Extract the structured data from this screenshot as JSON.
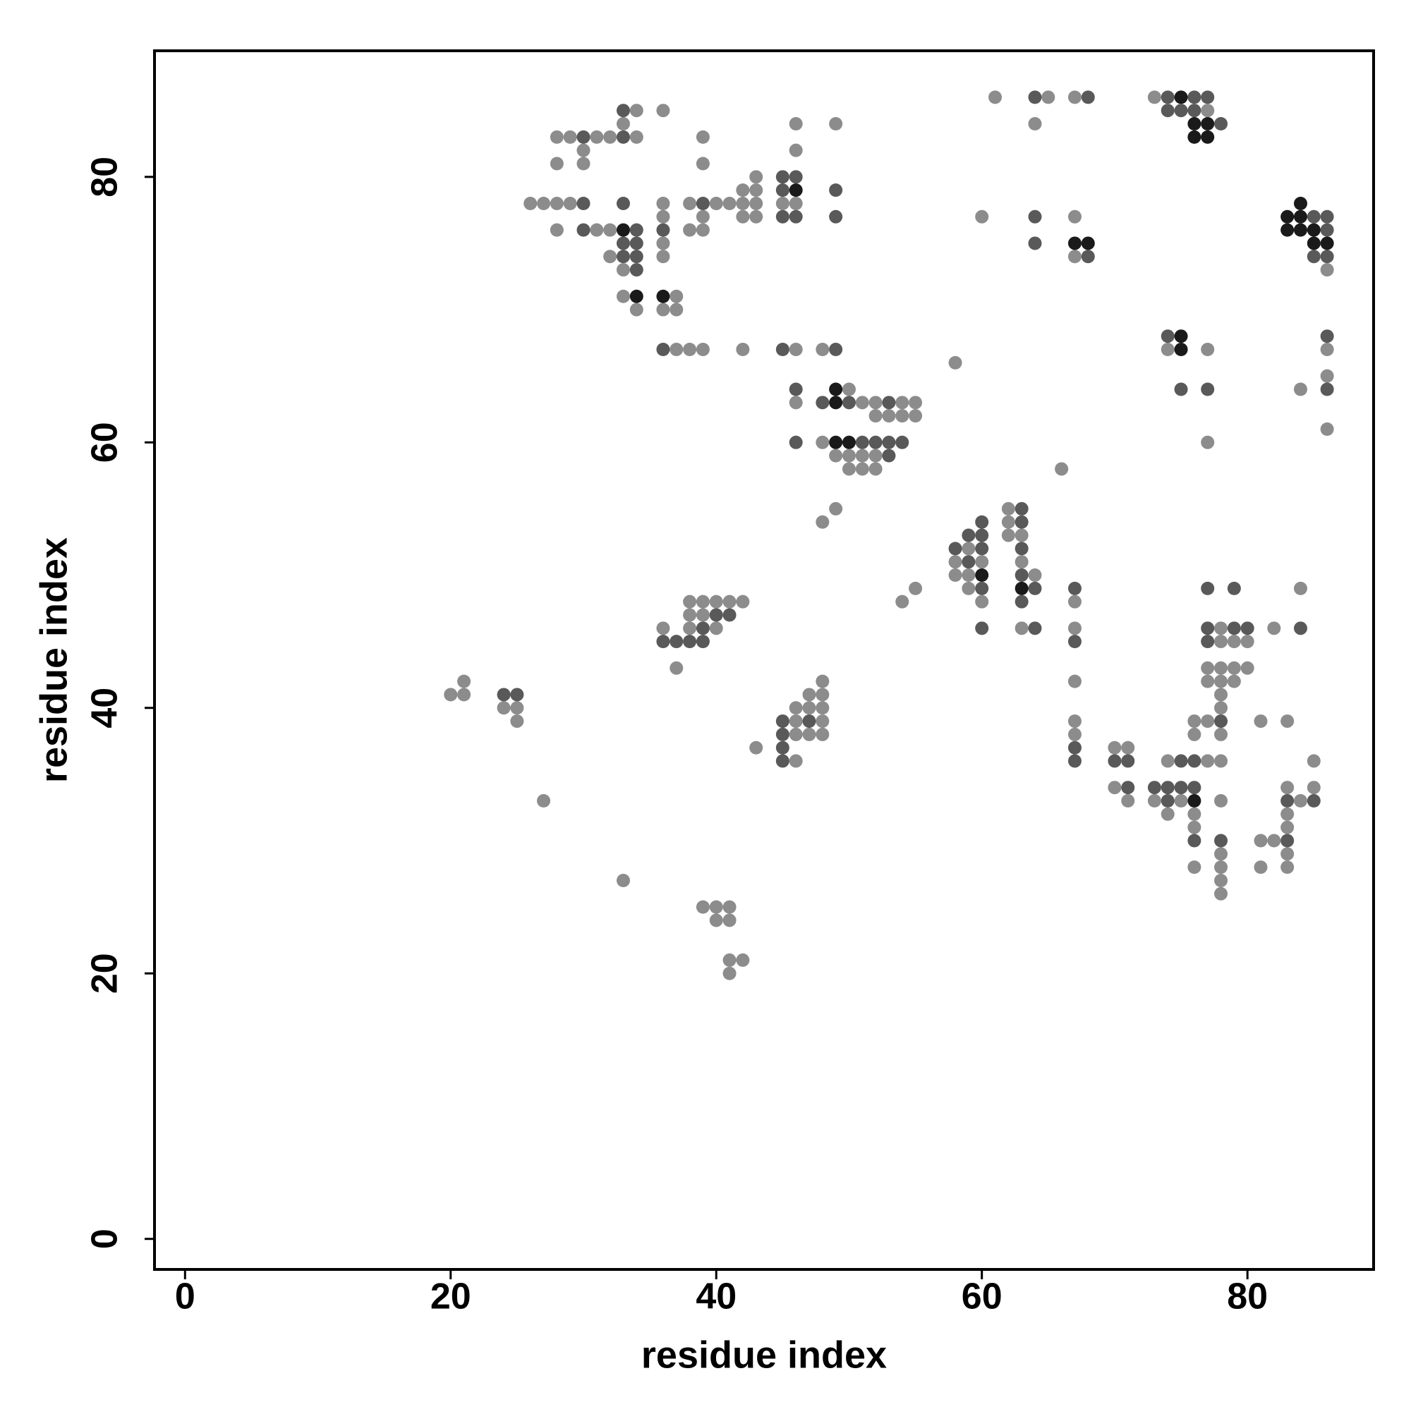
{
  "chart_data": {
    "type": "scatter",
    "xlabel": "residue index",
    "ylabel": "residue index",
    "xlim": [
      -2.3,
      89.5
    ],
    "ylim": [
      -2.3,
      89.5
    ],
    "xticks": [
      0,
      20,
      40,
      60,
      80
    ],
    "yticks": [
      0,
      20,
      40,
      60,
      80
    ],
    "series": [
      {
        "color": "#8c8c8c",
        "x": [
          61,
          65,
          67,
          73,
          34,
          36,
          77,
          33,
          46,
          49,
          64,
          28,
          29,
          31,
          32,
          34,
          39,
          30,
          46,
          28,
          30,
          39,
          43,
          42,
          43,
          26,
          27,
          28,
          29,
          36,
          38,
          40,
          41,
          42,
          43,
          45,
          46,
          36,
          39,
          42,
          43,
          60,
          67,
          28,
          31,
          32,
          38,
          39,
          36,
          32,
          36,
          67,
          33,
          86,
          33,
          37,
          34,
          36,
          37,
          37,
          38,
          39,
          42,
          46,
          48,
          74,
          77,
          86,
          58,
          86,
          50,
          84,
          46,
          51,
          52,
          54,
          55,
          52,
          53,
          54,
          55,
          86,
          48,
          77,
          49,
          50,
          51,
          52,
          50,
          51,
          52,
          66,
          49,
          62,
          48,
          62,
          62,
          63,
          59,
          58,
          60,
          63,
          58,
          59,
          64,
          55,
          59,
          84,
          38,
          39,
          40,
          41,
          42,
          54,
          60,
          67,
          38,
          39,
          36,
          38,
          40,
          63,
          67,
          78,
          82,
          78,
          79,
          80,
          37,
          77,
          78,
          79,
          80,
          21,
          48,
          67,
          77,
          78,
          79,
          20,
          21,
          47,
          48,
          78,
          24,
          25,
          46,
          47,
          48,
          78,
          25,
          46,
          48,
          67,
          76,
          77,
          81,
          83,
          46,
          47,
          48,
          67,
          76,
          78,
          43,
          70,
          71,
          46,
          74,
          77,
          78,
          85,
          70,
          83,
          85,
          27,
          71,
          73,
          75,
          78,
          84,
          74,
          76,
          83,
          76,
          83,
          81,
          82,
          78,
          83,
          76,
          78,
          81,
          83,
          33,
          78,
          78,
          39,
          40,
          41,
          40,
          41,
          41,
          42,
          41
        ],
        "values": [
          86,
          86,
          86,
          86,
          85,
          85,
          85,
          84,
          84,
          84,
          84,
          83,
          83,
          83,
          83,
          83,
          83,
          82,
          82,
          81,
          81,
          81,
          80,
          79,
          79,
          78,
          78,
          78,
          78,
          78,
          78,
          78,
          78,
          78,
          78,
          78,
          78,
          77,
          77,
          77,
          77,
          77,
          77,
          76,
          76,
          76,
          76,
          76,
          75,
          74,
          74,
          74,
          73,
          73,
          71,
          71,
          70,
          70,
          70,
          67,
          67,
          67,
          67,
          67,
          67,
          67,
          67,
          67,
          66,
          65,
          64,
          64,
          63,
          63,
          63,
          63,
          63,
          62,
          62,
          62,
          62,
          61,
          60,
          60,
          59,
          59,
          59,
          59,
          58,
          58,
          58,
          58,
          55,
          55,
          54,
          54,
          53,
          53,
          52,
          51,
          51,
          51,
          50,
          50,
          50,
          49,
          49,
          49,
          48,
          48,
          48,
          48,
          48,
          48,
          48,
          48,
          47,
          47,
          46,
          46,
          46,
          46,
          46,
          46,
          46,
          45,
          45,
          45,
          43,
          43,
          43,
          43,
          43,
          42,
          42,
          42,
          42,
          42,
          42,
          41,
          41,
          41,
          41,
          41,
          40,
          40,
          40,
          40,
          40,
          40,
          39,
          39,
          39,
          39,
          39,
          39,
          39,
          39,
          38,
          38,
          38,
          38,
          38,
          38,
          37,
          37,
          37,
          36,
          36,
          36,
          36,
          36,
          34,
          34,
          34,
          33,
          33,
          33,
          33,
          33,
          33,
          32,
          32,
          32,
          31,
          31,
          30,
          30,
          29,
          29,
          28,
          28,
          28,
          28,
          27,
          27,
          26,
          25,
          25,
          25,
          24,
          24,
          21,
          21,
          20
        ]
      },
      {
        "color": "#595959",
        "x": [
          64,
          68,
          74,
          76,
          77,
          33,
          74,
          75,
          76,
          78,
          30,
          33,
          45,
          46,
          45,
          49,
          30,
          33,
          39,
          45,
          46,
          49,
          64,
          85,
          86,
          30,
          34,
          36,
          86,
          33,
          34,
          64,
          33,
          34,
          68,
          85,
          86,
          34,
          74,
          86,
          36,
          45,
          49,
          46,
          75,
          77,
          86,
          48,
          50,
          53,
          46,
          51,
          52,
          53,
          54,
          53,
          63,
          60,
          63,
          59,
          60,
          58,
          60,
          63,
          59,
          63,
          60,
          64,
          67,
          77,
          79,
          63,
          40,
          41,
          39,
          60,
          64,
          77,
          79,
          80,
          84,
          36,
          37,
          38,
          39,
          67,
          77,
          24,
          25,
          45,
          47,
          78,
          45,
          45,
          67,
          45,
          67,
          70,
          71,
          75,
          76,
          71,
          73,
          74,
          75,
          76,
          74,
          83,
          85,
          76,
          78,
          83
        ],
        "values": [
          86,
          86,
          86,
          86,
          86,
          85,
          85,
          85,
          85,
          84,
          83,
          83,
          80,
          80,
          79,
          79,
          78,
          78,
          78,
          77,
          77,
          77,
          77,
          77,
          77,
          76,
          76,
          76,
          76,
          75,
          75,
          75,
          74,
          74,
          74,
          74,
          74,
          73,
          68,
          68,
          67,
          67,
          67,
          64,
          64,
          64,
          64,
          63,
          63,
          63,
          60,
          60,
          60,
          60,
          60,
          59,
          55,
          54,
          54,
          53,
          53,
          52,
          52,
          52,
          51,
          50,
          49,
          49,
          49,
          49,
          49,
          48,
          47,
          47,
          46,
          46,
          46,
          46,
          46,
          46,
          46,
          45,
          45,
          45,
          45,
          45,
          45,
          41,
          41,
          39,
          39,
          39,
          38,
          37,
          37,
          36,
          36,
          36,
          36,
          36,
          36,
          34,
          34,
          34,
          34,
          34,
          33,
          33,
          33,
          30,
          30,
          30
        ]
      },
      {
        "color": "#1a1a1a",
        "x": [
          75,
          76,
          77,
          76,
          77,
          46,
          84,
          83,
          84,
          33,
          83,
          84,
          85,
          67,
          68,
          85,
          86,
          34,
          36,
          75,
          75,
          49,
          49,
          49,
          50,
          60,
          63,
          76
        ],
        "values": [
          86,
          84,
          84,
          83,
          83,
          79,
          78,
          77,
          77,
          76,
          76,
          76,
          76,
          75,
          75,
          75,
          75,
          71,
          71,
          68,
          67,
          64,
          63,
          60,
          60,
          50,
          49,
          33
        ]
      }
    ]
  }
}
